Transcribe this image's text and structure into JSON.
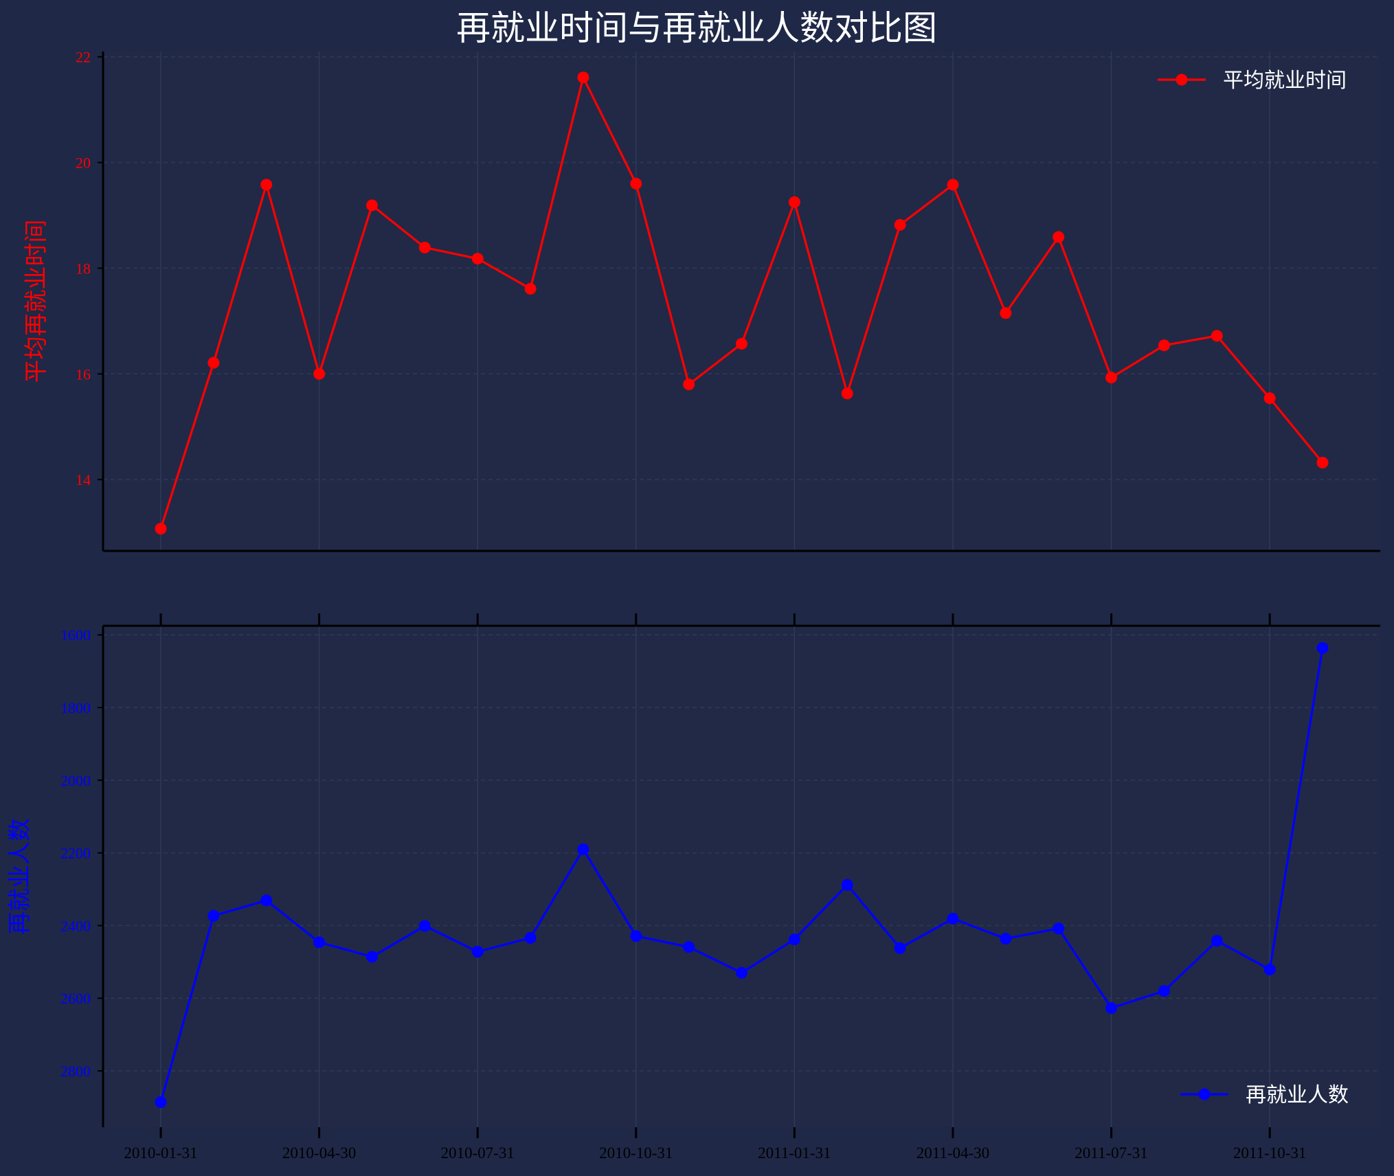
{
  "title": "再就业时间与再就业人数对比图",
  "colors": {
    "background": "#1f2847",
    "plot_background": "#212946",
    "grid": "#2d3a5a",
    "axis": "#000000",
    "series1": "#ff0000",
    "series2": "#0000ff",
    "text": "#ffffff"
  },
  "chart_data": [
    {
      "type": "line",
      "ylabel": "平均再就业时间",
      "ylim": [
        12.65,
        22.1
      ],
      "yticks": [
        14,
        16,
        18,
        20,
        22
      ],
      "y_inverted": false,
      "legend_loc": "upper right",
      "x": [
        "2010-01-31",
        "2010-02-28",
        "2010-03-31",
        "2010-04-30",
        "2010-05-31",
        "2010-06-30",
        "2010-07-31",
        "2010-08-31",
        "2010-09-30",
        "2010-10-31",
        "2010-11-30",
        "2010-12-31",
        "2011-01-31",
        "2011-02-28",
        "2011-03-31",
        "2011-04-30",
        "2011-05-31",
        "2011-06-30",
        "2011-07-31",
        "2011-08-31",
        "2011-09-30",
        "2011-10-31",
        "2011-11-30"
      ],
      "series": [
        {
          "name": "平均就业时间",
          "values": [
            13.07,
            16.21,
            19.58,
            16.0,
            19.19,
            18.39,
            18.18,
            17.61,
            21.61,
            19.6,
            15.8,
            16.57,
            19.25,
            15.63,
            18.82,
            19.58,
            17.15,
            18.59,
            15.93,
            16.54,
            16.72,
            15.54,
            14.32
          ]
        }
      ]
    },
    {
      "type": "line",
      "ylabel": "再就业人数",
      "ylim": [
        2955,
        1575
      ],
      "yticks": [
        1600,
        1800,
        2000,
        2200,
        2400,
        2600,
        2800
      ],
      "y_inverted": true,
      "legend_loc": "lower right",
      "x": [
        "2010-01-31",
        "2010-02-28",
        "2010-03-31",
        "2010-04-30",
        "2010-05-31",
        "2010-06-30",
        "2010-07-31",
        "2010-08-31",
        "2010-09-30",
        "2010-10-31",
        "2010-11-30",
        "2010-12-31",
        "2011-01-31",
        "2011-02-28",
        "2011-03-31",
        "2011-04-30",
        "2011-05-31",
        "2011-06-30",
        "2011-07-31",
        "2011-08-31",
        "2011-09-30",
        "2011-10-31",
        "2011-11-30"
      ],
      "xticks": [
        "2010-01-31",
        "2010-04-30",
        "2010-07-31",
        "2010-10-31",
        "2011-01-31",
        "2011-04-30",
        "2011-07-31",
        "2011-10-31"
      ],
      "series": [
        {
          "name": "再就业人数",
          "values": [
            2886,
            2373,
            2331,
            2446,
            2486,
            2401,
            2472,
            2434,
            2190,
            2429,
            2459,
            2530,
            2438,
            2288,
            2462,
            2381,
            2436,
            2408,
            2627,
            2580,
            2442,
            2521,
            1636
          ]
        }
      ]
    }
  ]
}
